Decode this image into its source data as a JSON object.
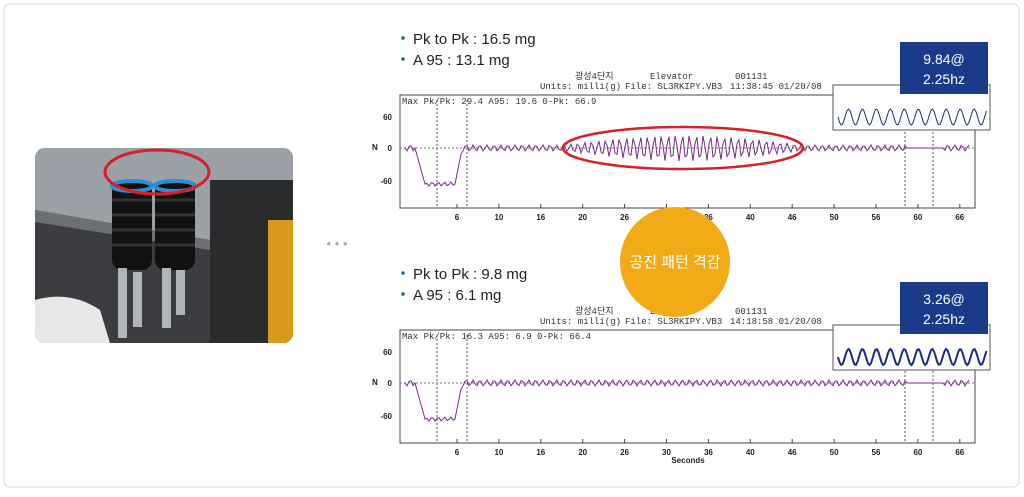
{
  "left_panel": {
    "separator": "• • •"
  },
  "center_label": "공진 패턴 격감",
  "charts": [
    {
      "bullets": [
        "Pk to Pk : 16.5 mg",
        "A 95 : 13.1 mg"
      ],
      "header": {
        "site": "광성4단지",
        "title": "Elevator",
        "id": "001131",
        "units": "Units: milli(g)",
        "file": "File: SL3RKIPY.VB3",
        "time": "11:38:45 01/20/08",
        "stats": "Max Pk/Pk: 29.4   A95: 19.6   0-Pk: 66.9"
      },
      "axis_letter": "N",
      "yticks": [
        "60",
        "0",
        "-60"
      ],
      "xticks": [
        "6",
        "10",
        "16",
        "20",
        "26",
        "30",
        "36",
        "40",
        "46",
        "50",
        "56",
        "60",
        "66"
      ],
      "xlabel": null,
      "box": [
        "9.84@",
        "2.25hz"
      ]
    },
    {
      "bullets": [
        "Pk to Pk : 9.8 mg",
        "A 95 : 6.1 mg"
      ],
      "header": {
        "site": "광성4단지",
        "title": "Elevator",
        "id": "001131",
        "units": "Units: milli(g)",
        "file": "File: SL3RKIPY.VB3",
        "time": "14:18:58 01/20/08",
        "stats": "Max Pk/Pk: 16.3   A95: 6.9   0-Pk: 66.4"
      },
      "axis_letter": "N",
      "yticks": [
        "60",
        "0",
        "-60"
      ],
      "xticks": [
        "6",
        "10",
        "16",
        "20",
        "26",
        "30",
        "36",
        "40",
        "46",
        "50",
        "56",
        "60",
        "66"
      ],
      "xlabel": "Seconds",
      "box": [
        "3.26@",
        "2.25hz"
      ]
    }
  ]
}
